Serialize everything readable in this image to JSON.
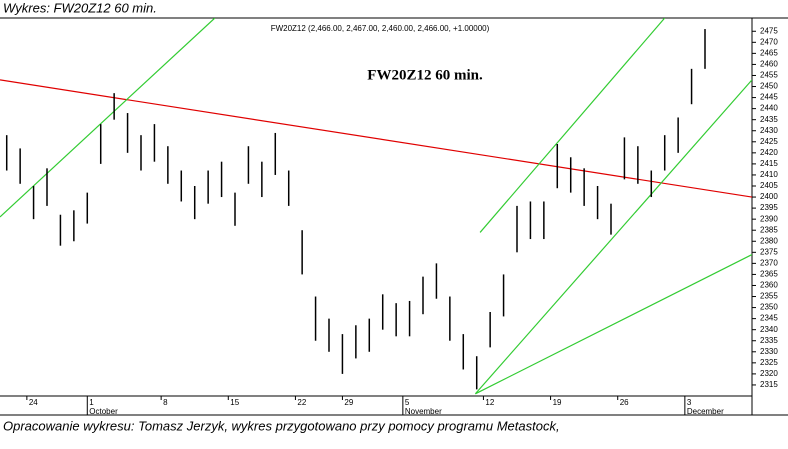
{
  "caption": "Wykres: FW20Z12 60 min.",
  "footer": "Opracowanie wykresu: Tomasz Jerzyk, wykres przygotowano przy pomocy programu Metastock,",
  "chart_data": {
    "type": "price-bars",
    "title": "FW20Z12 60 min.",
    "subtitle": "FW20Z12 (2,466.00, 2,467.00, 2,460.00, 2,466.00, +1.00000)",
    "x": [
      1,
      3,
      5,
      7,
      9,
      11,
      13,
      15,
      17,
      19,
      21,
      23,
      25,
      27,
      29,
      31,
      33,
      35,
      37,
      39,
      41,
      43,
      45,
      47,
      49,
      51,
      53,
      55,
      57,
      59,
      61,
      63,
      65,
      67,
      69,
      71,
      73,
      75,
      77,
      79,
      81,
      83,
      85,
      87,
      89,
      91,
      93,
      95,
      97,
      99,
      101,
      103,
      105
    ],
    "series": [
      {
        "color": "#000000",
        "high": [
          2428,
          2422,
          2405,
          2413,
          2392,
          2394,
          2402,
          2433,
          2447,
          2438,
          2428,
          2433,
          2423,
          2412,
          2405,
          2412,
          2416,
          2402,
          2423,
          2416,
          2429,
          2412,
          2385,
          2355,
          2345,
          2338,
          2342,
          2345,
          2356,
          2352,
          2353,
          2364,
          2370,
          2355,
          2338,
          2328,
          2348,
          2365,
          2396,
          2398,
          2398,
          2424,
          2418,
          2413,
          2405,
          2397,
          2427,
          2423,
          2412,
          2428,
          2436,
          2458,
          2476
        ],
        "low": [
          2412,
          2406,
          2390,
          2396,
          2378,
          2380,
          2388,
          2415,
          2435,
          2420,
          2412,
          2416,
          2406,
          2398,
          2390,
          2397,
          2400,
          2387,
          2406,
          2400,
          2410,
          2396,
          2365,
          2335,
          2330,
          2320,
          2327,
          2330,
          2340,
          2337,
          2337,
          2347,
          2354,
          2335,
          2322,
          2313,
          2332,
          2346,
          2375,
          2381,
          2381,
          2404,
          2402,
          2396,
          2390,
          2383,
          2408,
          2406,
          2400,
          2412,
          2420,
          2442,
          2458
        ]
      }
    ],
    "lines": [
      {
        "color": "#e00000",
        "points": [
          [
            0,
            2453
          ],
          [
            112,
            2400
          ]
        ]
      },
      {
        "color": "#33cc33",
        "points": [
          [
            0,
            2391
          ],
          [
            32,
            2481
          ]
        ]
      },
      {
        "color": "#33cc33",
        "points": [
          [
            71.5,
            2384
          ],
          [
            99,
            2481
          ]
        ]
      },
      {
        "color": "#33cc33",
        "points": [
          [
            70.8,
            2311
          ],
          [
            112,
            2453
          ]
        ]
      },
      {
        "color": "#33cc33",
        "points": [
          [
            70.8,
            2311
          ],
          [
            112,
            2374
          ]
        ]
      }
    ],
    "xlim": [
      0,
      112
    ],
    "xticks": [
      {
        "value": 4,
        "label": "24"
      },
      {
        "value": 13,
        "label": "1"
      },
      {
        "value": 24,
        "label": "8"
      },
      {
        "value": 34,
        "label": "15"
      },
      {
        "value": 44,
        "label": "22"
      },
      {
        "value": 51,
        "label": "29"
      },
      {
        "value": 60,
        "label": "5"
      },
      {
        "value": 72,
        "label": "12"
      },
      {
        "value": 82,
        "label": "19"
      },
      {
        "value": 92,
        "label": "26"
      },
      {
        "value": 102,
        "label": "3"
      }
    ],
    "month_labels": [
      {
        "value": 13,
        "label": "October"
      },
      {
        "value": 60,
        "label": "November"
      },
      {
        "value": 102,
        "label": "December"
      }
    ],
    "ylim": [
      2310,
      2481
    ],
    "yticks": [
      2315,
      2320,
      2325,
      2330,
      2335,
      2340,
      2345,
      2350,
      2355,
      2360,
      2365,
      2370,
      2375,
      2380,
      2385,
      2390,
      2395,
      2400,
      2405,
      2410,
      2415,
      2420,
      2425,
      2430,
      2435,
      2440,
      2445,
      2450,
      2455,
      2460,
      2465,
      2470,
      2475
    ]
  }
}
